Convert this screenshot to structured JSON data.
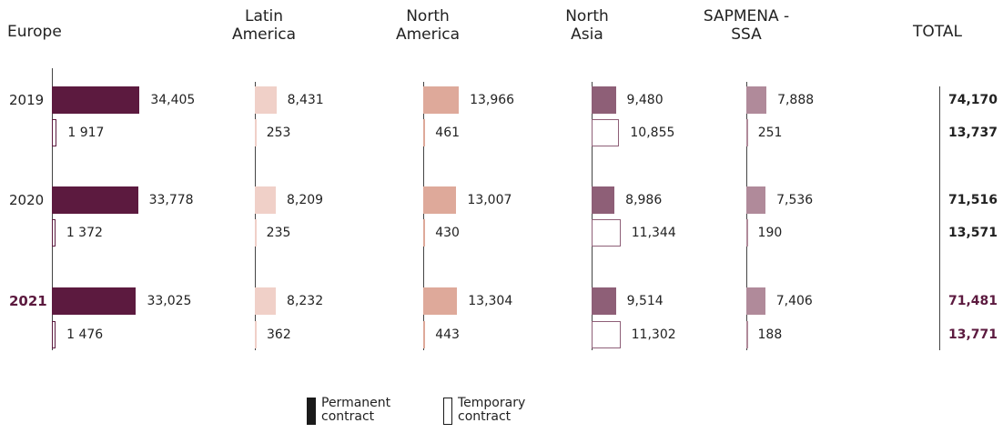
{
  "chart_data": {
    "type": "bar",
    "orientation": "horizontal",
    "categories": [
      "2019",
      "2020",
      "2021"
    ],
    "highlight_index": 2,
    "highlight_color": "#5c1a3f",
    "series": [
      {
        "name": "Permanent contract",
        "color": "#1a1a1a",
        "style": "filled"
      },
      {
        "name": "Temporary contract",
        "color": "#1a1a1a",
        "style": "outline"
      }
    ],
    "panels": [
      {
        "title": "Europe",
        "color": "#5c1a3f",
        "values": [
          [
            34405,
            33778,
            33025
          ],
          [
            1917,
            1372,
            1476
          ]
        ],
        "value_labels": [
          [
            "34,405",
            "33,778",
            "33,025"
          ],
          [
            "1 917",
            "1 372",
            "1 476"
          ]
        ]
      },
      {
        "title": "Latin America",
        "color": "#f0d0c8",
        "values": [
          [
            8431,
            8209,
            8232
          ],
          [
            253,
            235,
            362
          ]
        ],
        "value_labels": [
          [
            "8,431",
            "8,209",
            "8,232"
          ],
          [
            "253",
            "235",
            "362"
          ]
        ]
      },
      {
        "title": "North America",
        "color": "#dea99a",
        "values": [
          [
            13966,
            13007,
            13304
          ],
          [
            461,
            430,
            443
          ]
        ],
        "value_labels": [
          [
            "13,966",
            "13,007",
            "13,304"
          ],
          [
            "461",
            "430",
            "443"
          ]
        ]
      },
      {
        "title": "North Asia",
        "color": "#8e5f77",
        "values": [
          [
            9480,
            8986,
            9514
          ],
          [
            10855,
            11344,
            11302
          ]
        ],
        "value_labels": [
          [
            "9,480",
            "8,986",
            "9,514"
          ],
          [
            "10,855",
            "11,344",
            "11,302"
          ]
        ]
      },
      {
        "title": "SAPMENA - SSA",
        "color": "#b08a9a",
        "values": [
          [
            7888,
            7536,
            7406
          ],
          [
            251,
            190,
            188
          ]
        ],
        "value_labels": [
          [
            "7,888",
            "7,536",
            "7,406"
          ],
          [
            "251",
            "190",
            "188"
          ]
        ]
      }
    ],
    "totals": {
      "title": "TOTAL",
      "values": [
        [
          74170,
          71516,
          71481
        ],
        [
          13737,
          13571,
          13771
        ]
      ],
      "value_labels": [
        [
          "74,170",
          "71,516",
          "71,481"
        ],
        [
          "13,737",
          "13,571",
          "13,771"
        ]
      ]
    }
  }
}
